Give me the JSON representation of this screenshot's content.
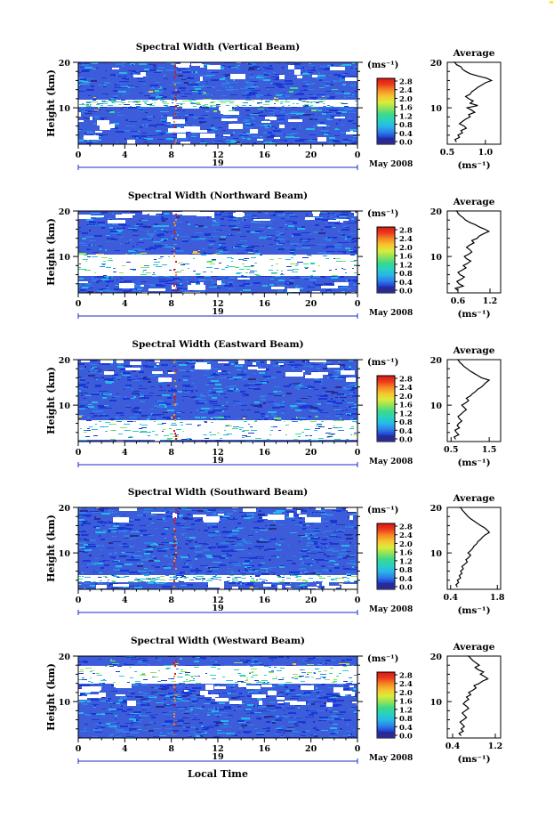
{
  "axis_labels": {
    "height": "Height (km)",
    "unit": "(ms⁻¹)",
    "average_title": "Average",
    "local_time": "Local Time",
    "date": "May 2008",
    "day": "19"
  },
  "colorbar_ticks": [
    "0.0",
    "0.4",
    "0.8",
    "1.2",
    "1.6",
    "2.0",
    "2.4",
    "2.8"
  ],
  "colors": {
    "white": "#ffffff",
    "background_blue": "#3d5cd9",
    "spectrum": [
      "#2b2b8f",
      "#1a37d6",
      "#2f7fe6",
      "#27b8e8",
      "#29d1c0",
      "#3bd98a",
      "#8fe25a",
      "#d9ec3b",
      "#f7c531",
      "#f58b24",
      "#ec3b1c",
      "#d71717"
    ]
  },
  "chart_data": [
    {
      "type": "heatmap",
      "title": "Spectral Width (Vertical Beam)",
      "xlabel": "",
      "ylabel": "Height (km)",
      "x_ticks": [
        "0",
        "4",
        "8",
        "12",
        "16",
        "20",
        "0"
      ],
      "xlim": [
        0,
        24
      ],
      "y_ticks": [
        "10",
        "20"
      ],
      "ylim": [
        2,
        20
      ],
      "colorbar": {
        "label": "(ms⁻¹)",
        "range": [
          0,
          3.0
        ]
      },
      "average_profile": {
        "title": "Average",
        "xlabel": "(ms⁻¹)",
        "x_ticks": [
          "0.5",
          "1.0"
        ],
        "xlim": [
          0.5,
          1.2
        ],
        "ylim": [
          2,
          20
        ],
        "y_ticks": [
          "10",
          "20"
        ],
        "x": [
          0.62,
          0.6,
          0.66,
          0.64,
          0.7,
          0.68,
          0.75,
          0.72,
          0.66,
          0.7,
          0.74,
          0.8,
          0.78,
          0.86,
          0.82,
          0.76,
          0.9,
          0.8,
          0.84,
          0.78,
          0.74,
          0.8,
          0.82,
          0.86,
          0.9,
          0.95,
          1.0,
          1.08,
          1.02,
          0.9,
          0.8,
          0.74,
          0.7,
          0.68,
          0.62,
          0.6,
          0.58
        ],
        "y": [
          2.5,
          3,
          3.5,
          4,
          4.5,
          5,
          5.5,
          6,
          6.5,
          7,
          7.5,
          8,
          8.5,
          9,
          9.5,
          10,
          10.5,
          11,
          11.5,
          12,
          12.5,
          13,
          13.5,
          14,
          14.5,
          15,
          15.5,
          16,
          16.5,
          17,
          17.5,
          18,
          18.5,
          19,
          19.5,
          20,
          20.5
        ]
      }
    },
    {
      "type": "heatmap",
      "title": "Spectral Width (Northward Beam)",
      "xlabel": "",
      "ylabel": "Height (km)",
      "x_ticks": [
        "0",
        "4",
        "8",
        "12",
        "16",
        "20",
        "0"
      ],
      "xlim": [
        0,
        24
      ],
      "y_ticks": [
        "10",
        "20"
      ],
      "ylim": [
        2,
        20
      ],
      "colorbar": {
        "label": "(ms⁻¹)",
        "range": [
          0,
          3.0
        ]
      },
      "average_profile": {
        "title": "Average",
        "xlabel": "(ms⁻¹)",
        "x_ticks": [
          "0.6",
          "1.2"
        ],
        "xlim": [
          0.4,
          1.4
        ],
        "ylim": [
          2,
          20
        ],
        "y_ticks": [
          "10",
          "20"
        ],
        "x": [
          0.6,
          0.55,
          0.7,
          0.62,
          0.58,
          0.66,
          0.72,
          0.64,
          0.6,
          0.68,
          0.75,
          0.7,
          0.78,
          0.84,
          0.76,
          0.72,
          0.8,
          0.86,
          0.82,
          0.76,
          0.82,
          0.9,
          0.86,
          0.96,
          1.0,
          1.08,
          1.18,
          1.1,
          1.0,
          0.92,
          0.82,
          0.74,
          0.7,
          0.64,
          0.6,
          0.58,
          0.56
        ],
        "y": [
          2.5,
          3,
          3.5,
          4,
          4.5,
          5,
          5.5,
          6,
          6.5,
          7,
          7.5,
          8,
          8.5,
          9,
          9.5,
          10,
          10.5,
          11,
          11.5,
          12,
          12.5,
          13,
          13.5,
          14,
          14.5,
          15,
          15.5,
          16,
          16.5,
          17,
          17.5,
          18,
          18.5,
          19,
          19.5,
          20,
          20.5
        ]
      }
    },
    {
      "type": "heatmap",
      "title": "Spectral Width (Eastward Beam)",
      "xlabel": "",
      "ylabel": "Height (km)",
      "x_ticks": [
        "0",
        "4",
        "8",
        "12",
        "16",
        "20",
        "0"
      ],
      "xlim": [
        0,
        24
      ],
      "y_ticks": [
        "10",
        "20"
      ],
      "ylim": [
        2,
        20
      ],
      "colorbar": {
        "label": "(ms⁻¹)",
        "range": [
          0,
          3.0
        ]
      },
      "average_profile": {
        "title": "Average",
        "xlabel": "(ms⁻¹)",
        "x_ticks": [
          "0.5",
          "1.5"
        ],
        "xlim": [
          0.4,
          1.8
        ],
        "ylim": [
          2,
          20
        ],
        "y_ticks": [
          "10",
          "20"
        ],
        "x": [
          0.62,
          0.58,
          0.7,
          0.64,
          0.6,
          0.72,
          0.66,
          0.7,
          0.78,
          0.72,
          0.68,
          0.76,
          0.82,
          0.9,
          0.84,
          0.78,
          0.88,
          0.96,
          0.9,
          1.0,
          1.06,
          1.14,
          1.2,
          1.3,
          1.36,
          1.42,
          1.5,
          1.3,
          1.2,
          1.1,
          1.0,
          0.92,
          0.84,
          0.78,
          0.72,
          0.68,
          0.66
        ],
        "y": [
          2.5,
          3,
          3.5,
          4,
          4.5,
          5,
          5.5,
          6,
          6.5,
          7,
          7.5,
          8,
          8.5,
          9,
          9.5,
          10,
          10.5,
          11,
          11.5,
          12,
          12.5,
          13,
          13.5,
          14,
          14.5,
          15,
          15.5,
          16,
          16.5,
          17,
          17.5,
          18,
          18.5,
          19,
          19.5,
          20,
          20.5
        ]
      }
    },
    {
      "type": "heatmap",
      "title": "Spectral Width (Southward Beam)",
      "xlabel": "",
      "ylabel": "Height (km)",
      "x_ticks": [
        "0",
        "4",
        "8",
        "12",
        "16",
        "20",
        "0"
      ],
      "xlim": [
        0,
        24
      ],
      "y_ticks": [
        "10",
        "20"
      ],
      "ylim": [
        2,
        20
      ],
      "colorbar": {
        "label": "(ms⁻¹)",
        "range": [
          0,
          3.0
        ]
      },
      "average_profile": {
        "title": "Average",
        "xlabel": "(ms⁻¹)",
        "x_ticks": [
          "0.4",
          "1.8"
        ],
        "xlim": [
          0.3,
          1.9
        ],
        "ylim": [
          2,
          20
        ],
        "y_ticks": [
          "10",
          "20"
        ],
        "x": [
          0.6,
          0.56,
          0.64,
          0.6,
          0.7,
          0.66,
          0.74,
          0.7,
          0.78,
          0.74,
          0.82,
          0.9,
          0.86,
          0.94,
          1.0,
          0.92,
          1.0,
          1.06,
          1.1,
          1.18,
          1.22,
          1.3,
          1.36,
          1.44,
          1.56,
          1.5,
          1.42,
          1.3,
          1.2,
          1.1,
          1.0,
          0.92,
          0.86,
          0.8,
          0.74,
          0.7,
          0.66
        ],
        "y": [
          2.5,
          3,
          3.5,
          4,
          4.5,
          5,
          5.5,
          6,
          6.5,
          7,
          7.5,
          8,
          8.5,
          9,
          9.5,
          10,
          10.5,
          11,
          11.5,
          12,
          12.5,
          13,
          13.5,
          14,
          14.5,
          15,
          15.5,
          16,
          16.5,
          17,
          17.5,
          18,
          18.5,
          19,
          19.5,
          20,
          20.5
        ]
      }
    },
    {
      "type": "heatmap",
      "title": "Spectral Width (Westward Beam)",
      "xlabel": "Local Time",
      "ylabel": "Height (km)",
      "x_ticks": [
        "0",
        "4",
        "8",
        "12",
        "16",
        "20",
        "0"
      ],
      "xlim": [
        0,
        24
      ],
      "y_ticks": [
        "10",
        "20"
      ],
      "ylim": [
        2,
        20
      ],
      "colorbar": {
        "label": "(ms⁻¹)",
        "range": [
          0,
          3.0
        ]
      },
      "average_profile": {
        "title": "Average",
        "xlabel": "(ms⁻¹)",
        "x_ticks": [
          "0.4",
          "1.2"
        ],
        "xlim": [
          0.3,
          1.3
        ],
        "ylim": [
          2,
          20
        ],
        "y_ticks": [
          "10",
          "20"
        ],
        "x": [
          0.56,
          0.52,
          0.6,
          0.56,
          0.62,
          0.58,
          0.54,
          0.6,
          0.66,
          0.62,
          0.58,
          0.64,
          0.7,
          0.66,
          0.6,
          0.64,
          0.7,
          0.66,
          0.74,
          0.7,
          0.78,
          0.84,
          0.8,
          0.9,
          0.96,
          1.06,
          1.0,
          0.92,
          0.98,
          0.88,
          0.82,
          0.9,
          0.84,
          0.78,
          0.74,
          0.7,
          0.68
        ],
        "y": [
          2.5,
          3,
          3.5,
          4,
          4.5,
          5,
          5.5,
          6,
          6.5,
          7,
          7.5,
          8,
          8.5,
          9,
          9.5,
          10,
          10.5,
          11,
          11.5,
          12,
          12.5,
          13,
          13.5,
          14,
          14.5,
          15,
          15.5,
          16,
          16.5,
          17,
          17.5,
          18,
          18.5,
          19,
          19.5,
          20,
          20.5
        ]
      }
    }
  ]
}
